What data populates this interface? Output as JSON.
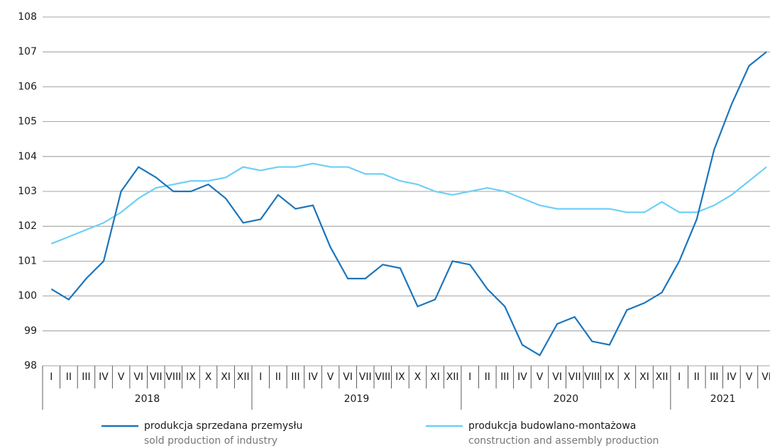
{
  "chart_data": {
    "type": "line",
    "categories": [
      "I",
      "II",
      "III",
      "IV",
      "V",
      "VI",
      "VII",
      "VIII",
      "IX",
      "X",
      "XI",
      "XII",
      "I",
      "II",
      "III",
      "IV",
      "V",
      "VI",
      "VII",
      "VIII",
      "IX",
      "X",
      "XI",
      "XII",
      "I",
      "II",
      "III",
      "IV",
      "V",
      "VI",
      "VII",
      "VIII",
      "IX",
      "X",
      "XI",
      "XII",
      "I",
      "II",
      "III",
      "IV",
      "V",
      "VI"
    ],
    "year_labels": [
      "2018",
      "2019",
      "2020",
      "2021"
    ],
    "series": [
      {
        "name": "produkcja sprzedana przemysłu",
        "name_en": "sold production of industry",
        "color": "#1b75bc",
        "values": [
          100.2,
          99.9,
          100.5,
          101.0,
          103.0,
          103.7,
          103.4,
          103.0,
          103.0,
          103.2,
          102.8,
          102.1,
          102.2,
          102.9,
          102.5,
          102.6,
          101.4,
          100.5,
          100.5,
          100.9,
          100.8,
          99.7,
          99.9,
          101.0,
          100.9,
          100.2,
          99.7,
          98.6,
          98.3,
          99.2,
          99.4,
          98.7,
          98.6,
          99.6,
          99.8,
          100.1,
          101.0,
          102.2,
          104.2,
          105.5,
          106.6,
          107.0
        ]
      },
      {
        "name": "produkcja budowlano-montażowa",
        "name_en": "construction and assembly production",
        "color": "#6dcff6",
        "values": [
          101.5,
          101.7,
          101.9,
          102.1,
          102.4,
          102.8,
          103.1,
          103.2,
          103.3,
          103.3,
          103.4,
          103.7,
          103.6,
          103.7,
          103.7,
          103.8,
          103.7,
          103.7,
          103.5,
          103.5,
          103.3,
          103.2,
          103.0,
          102.9,
          103.0,
          103.1,
          103.0,
          102.8,
          102.6,
          102.5,
          102.5,
          102.5,
          102.5,
          102.4,
          102.4,
          102.7,
          102.4,
          102.4,
          102.6,
          102.9,
          103.3,
          103.7
        ]
      }
    ],
    "ylim": [
      98,
      108
    ],
    "yticks": [
      98,
      99,
      100,
      101,
      102,
      103,
      104,
      105,
      106,
      107,
      108
    ],
    "grid": true
  }
}
